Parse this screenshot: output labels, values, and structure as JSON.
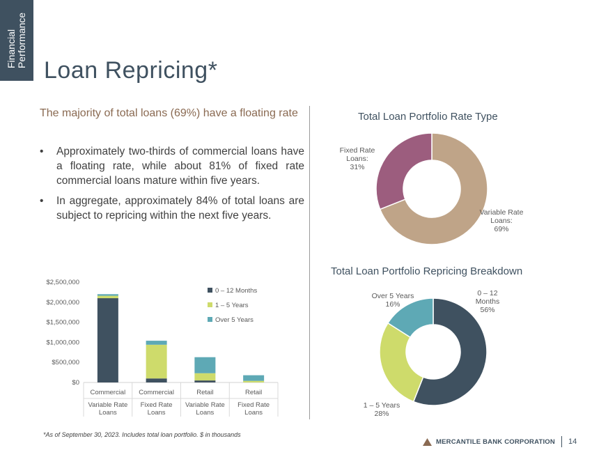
{
  "side_tab": {
    "line1": "Financial",
    "line2": "Performance"
  },
  "title": "Loan Repricing*",
  "headline": "The majority of total loans (69%) have a floating rate",
  "bullets": [
    "Approximately two-thirds of commercial loans have a floating rate, while about 81% of fixed rate commercial loans mature within five years.",
    "In aggregate, approximately 84% of total loans are subject to repricing within the next five years."
  ],
  "footnote": "*As of September 30, 2023. Includes total loan portfolio. $ in thousands",
  "brand": {
    "name": "MERCANTILE BANK CORPORATION",
    "page": "14"
  },
  "colors": {
    "dark": "#3f5160",
    "green": "#cedb6b",
    "teal": "#5ea9b5",
    "tan": "#bfa488",
    "mauve": "#9c5d7e"
  },
  "chart_data": [
    {
      "type": "bar",
      "stacked": true,
      "categories": [
        {
          "line1": "Commercial",
          "line2": "Variable Rate",
          "line3": "Loans"
        },
        {
          "line1": "Commercial",
          "line2": "Fixed Rate",
          "line3": "Loans"
        },
        {
          "line1": "Retail",
          "line2": "Variable Rate",
          "line3": "Loans"
        },
        {
          "line1": "Retail",
          "line2": "Fixed Rate",
          "line3": "Loans"
        }
      ],
      "series": [
        {
          "name": "0 – 12 Months",
          "values": [
            2100000,
            100000,
            50000,
            0
          ],
          "color": "#3f5160"
        },
        {
          "name": "1 – 5 Years",
          "values": [
            60000,
            840000,
            180000,
            40000
          ],
          "color": "#cedb6b"
        },
        {
          "name": "Over 5 Years",
          "values": [
            40000,
            100000,
            400000,
            140000
          ],
          "color": "#5ea9b5"
        }
      ],
      "yticks": [
        "$0",
        "$500,000",
        "$1,000,000",
        "$1,500,000",
        "$2,000,000",
        "$2,500,000"
      ],
      "ylim": [
        0,
        2500000
      ],
      "legend_position": "top-right"
    },
    {
      "type": "pie",
      "donut": true,
      "title": "Total Loan Portfolio Rate Type",
      "slices": [
        {
          "label": "Variable Rate Loans:",
          "pct": "69%",
          "value": 69,
          "color": "#bfa488"
        },
        {
          "label": "Fixed Rate Loans:",
          "pct": "31%",
          "value": 31,
          "color": "#9c5d7e"
        }
      ]
    },
    {
      "type": "pie",
      "donut": true,
      "title": "Total Loan Portfolio Repricing Breakdown",
      "slices": [
        {
          "label": "0 – 12 Months",
          "pct": "56%",
          "value": 56,
          "color": "#3f5160"
        },
        {
          "label": "1 – 5 Years",
          "pct": "28%",
          "value": 28,
          "color": "#cedb6b"
        },
        {
          "label": "Over 5 Years",
          "pct": "16%",
          "value": 16,
          "color": "#5ea9b5"
        }
      ]
    }
  ]
}
